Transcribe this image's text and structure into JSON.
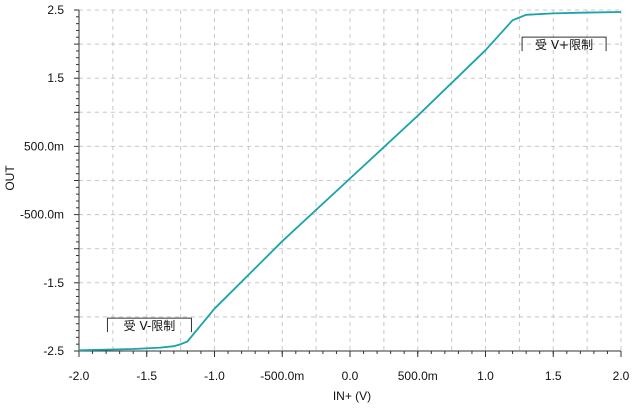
{
  "chart_data": {
    "type": "line",
    "xlabel": "IN+ (V)",
    "ylabel": "OUT",
    "xlim": [
      -2.0,
      2.0
    ],
    "ylim": [
      -2.5,
      2.5
    ],
    "grid": true,
    "line_color": "#1aa3a8",
    "x_ticks": [
      {
        "value": -2.0,
        "label": "-2.0"
      },
      {
        "value": -1.5,
        "label": "-1.5"
      },
      {
        "value": -1.0,
        "label": "-1.0"
      },
      {
        "value": -0.5,
        "label": "-500.0m"
      },
      {
        "value": 0.0,
        "label": "0.0"
      },
      {
        "value": 0.5,
        "label": "500.0m"
      },
      {
        "value": 1.0,
        "label": "1.0"
      },
      {
        "value": 1.5,
        "label": "1.5"
      },
      {
        "value": 2.0,
        "label": "2.0"
      }
    ],
    "y_ticks": [
      {
        "value": 2.5,
        "label": "2.5"
      },
      {
        "value": 1.5,
        "label": "1.5"
      },
      {
        "value": 0.5,
        "label": "500.0m"
      },
      {
        "value": -0.5,
        "label": "-500.0m"
      },
      {
        "value": -1.5,
        "label": "-1.5"
      },
      {
        "value": -2.5,
        "label": "-2.5"
      }
    ],
    "series": [
      {
        "x": [
          -2.0,
          -1.8,
          -1.6,
          -1.4,
          -1.3,
          -1.25,
          -1.2,
          -1.0,
          -0.5,
          0.0,
          0.5,
          1.0,
          1.1,
          1.2,
          1.25,
          1.3,
          1.5,
          1.7,
          2.0
        ],
        "y": [
          -2.49,
          -2.48,
          -2.47,
          -2.45,
          -2.43,
          -2.4,
          -2.36,
          -1.88,
          -0.89,
          0.03,
          0.95,
          1.91,
          2.13,
          2.35,
          2.39,
          2.43,
          2.45,
          2.46,
          2.47
        ]
      }
    ],
    "annotations": [
      {
        "text": "受 V+限制",
        "x": 1.58,
        "y": 2.0
      },
      {
        "text": "受 V-限制",
        "x": -1.48,
        "y": -2.12
      }
    ]
  }
}
